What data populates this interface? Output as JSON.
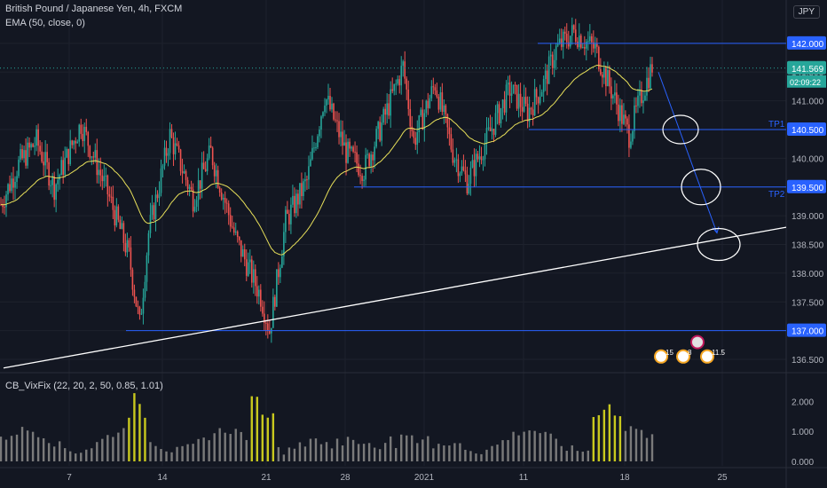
{
  "header": {
    "symbol_line": "British Pound / Japanese Yen, 4h, FXCM",
    "ema_line": "EMA (50, close, 0)",
    "indicator_line": "CB_VixFix (22, 20, 2, 50, 0.85, 1.01)",
    "currency": "JPY"
  },
  "colors": {
    "background": "#131722",
    "up": "#26a69a",
    "down": "#ef5350",
    "ema": "#e8e05a",
    "level_line": "#2962ff",
    "vix_normal": "#7a7a7a",
    "vix_alert": "#c8c81e",
    "trendline": "#ffffff"
  },
  "annotations": {
    "tp1": "TP1",
    "tp2": "TP2",
    "last_price": "141.569",
    "countdown": "02:09:22",
    "badge_values": [
      "15",
      "8",
      "11.5"
    ]
  },
  "chart_data": [
    {
      "type": "candlestick",
      "title": "British Pound / Japanese Yen, 4h, FXCM",
      "x_ticks": [
        "7",
        "14",
        "21",
        "28",
        "2021",
        "11",
        "18",
        "25"
      ],
      "y_ticks": [
        "136.500",
        "137.000",
        "137.500",
        "138.000",
        "138.500",
        "139.000",
        "139.500",
        "140.000",
        "140.500",
        "141.000",
        "141.500",
        "142.000"
      ],
      "ylim": [
        136.3,
        142.6
      ],
      "horizontal_levels": [
        {
          "value": 142.0,
          "label": "142.000"
        },
        {
          "value": 140.5,
          "label": "140.500",
          "tag": "TP1"
        },
        {
          "value": 139.5,
          "label": "139.500",
          "tag": "TP2"
        },
        {
          "value": 138.5,
          "label": "138.500"
        },
        {
          "value": 137.0,
          "label": "137.000"
        }
      ],
      "last_price": 141.569,
      "trendline": {
        "from": [
          136.35
        ],
        "to": [
          138.8
        ]
      },
      "series": [
        {
          "name": "EMA (50, close, 0)",
          "values": [
            138.9,
            139.1,
            139.2,
            139.4,
            139.6,
            139.7,
            139.6,
            139.4,
            139.2,
            139.1,
            139.0,
            138.9,
            138.9,
            139.0,
            139.1,
            139.3,
            139.4,
            139.5,
            139.6,
            139.5,
            139.3,
            139.2,
            139.1,
            139.1,
            139.3,
            139.5,
            139.6,
            139.6,
            139.7,
            139.8,
            139.9,
            140.0,
            140.0,
            140.1,
            140.3,
            140.5,
            140.7,
            140.9,
            141.1,
            141.2,
            141.3
          ]
        }
      ]
    },
    {
      "type": "bar",
      "title": "CB_VixFix (22, 20, 2, 50, 0.85, 1.01)",
      "y_ticks": [
        "0.000",
        "1.000",
        "2.000"
      ],
      "ylim": [
        0,
        2.6
      ],
      "alert_threshold": 1.35
    }
  ]
}
